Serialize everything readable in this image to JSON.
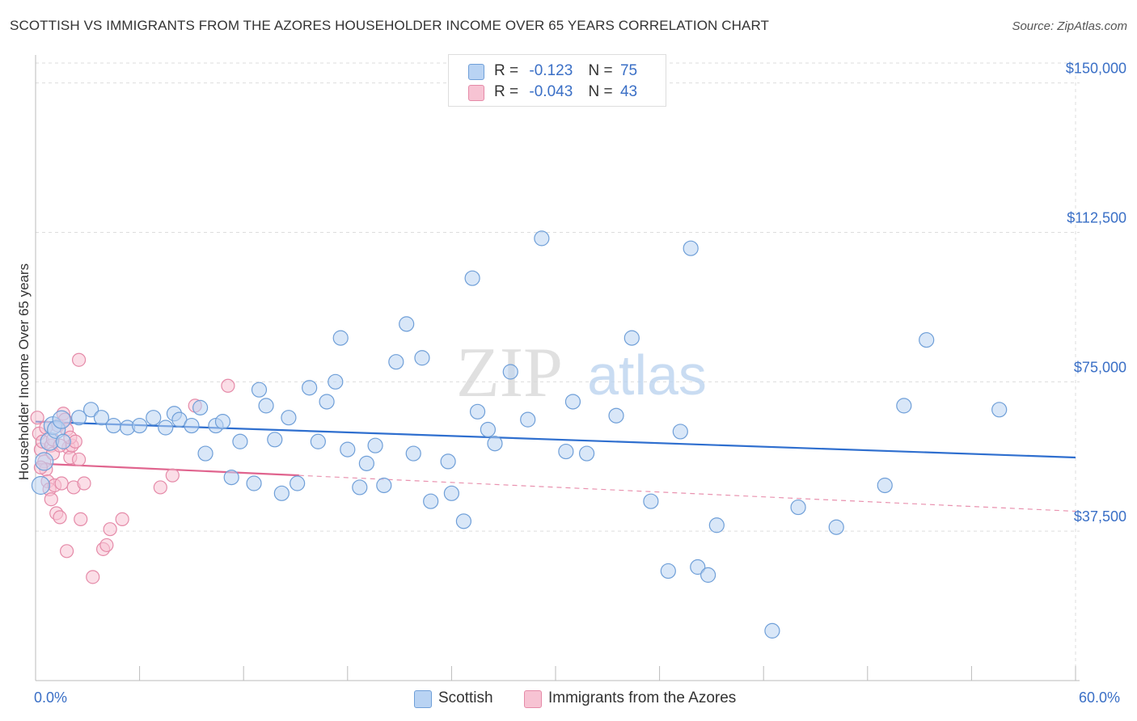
{
  "title": "SCOTTISH VS IMMIGRANTS FROM THE AZORES HOUSEHOLDER INCOME OVER 65 YEARS CORRELATION CHART",
  "source": "Source: ZipAtlas.com",
  "watermark": {
    "zip": "ZIP",
    "atlas": "atlas"
  },
  "stats": {
    "scottish": {
      "r_label": "R =",
      "r_value": "-0.123",
      "n_label": "N =",
      "n_value": "75"
    },
    "azores": {
      "r_label": "R =",
      "r_value": "-0.043",
      "n_label": "N =",
      "n_value": "43"
    }
  },
  "legend": {
    "scottish": "Scottish",
    "azores": "Immigrants from the Azores"
  },
  "colors": {
    "scottish_fill": "#b9d3f3",
    "scottish_stroke": "#6f9fd8",
    "scottish_line": "#2f6fcf",
    "azores_fill": "#f7c3d3",
    "azores_stroke": "#e58aa8",
    "azores_line": "#e0648e",
    "axis_text": "#3a6fc6",
    "grid": "#dddddd"
  },
  "chart_data": {
    "type": "scatter",
    "ylabel": "Householder Income Over 65 years",
    "xlabel": "",
    "xlim": [
      0,
      60
    ],
    "ylim": [
      0,
      155000
    ],
    "x_tick_labels": [
      "0.0%",
      "60.0%"
    ],
    "y_ticks": [
      {
        "value": 37500,
        "label": "$37,500"
      },
      {
        "value": 75000,
        "label": "$75,000"
      },
      {
        "value": 112500,
        "label": "$112,500"
      },
      {
        "value": 150000,
        "label": "$150,000"
      }
    ],
    "grid": true,
    "series": [
      {
        "name": "Scottish",
        "trend": {
          "x": [
            0,
            60
          ],
          "y": [
            65000,
            56000
          ]
        },
        "points": [
          [
            0.3,
            49000
          ],
          [
            0.5,
            55000
          ],
          [
            0.8,
            60000
          ],
          [
            1.0,
            64000
          ],
          [
            1.2,
            63000
          ],
          [
            1.5,
            65500
          ],
          [
            1.6,
            60000
          ],
          [
            2.5,
            66000
          ],
          [
            3.2,
            68000
          ],
          [
            3.8,
            66000
          ],
          [
            4.5,
            64000
          ],
          [
            5.3,
            63500
          ],
          [
            6.0,
            64000
          ],
          [
            6.8,
            66000
          ],
          [
            7.5,
            63500
          ],
          [
            8.0,
            67000
          ],
          [
            8.3,
            65500
          ],
          [
            9.0,
            64000
          ],
          [
            9.5,
            68500
          ],
          [
            9.8,
            57000
          ],
          [
            10.4,
            64000
          ],
          [
            10.8,
            65000
          ],
          [
            11.3,
            51000
          ],
          [
            11.8,
            60000
          ],
          [
            12.6,
            49500
          ],
          [
            12.9,
            73000
          ],
          [
            13.3,
            69000
          ],
          [
            13.8,
            60500
          ],
          [
            14.2,
            47000
          ],
          [
            14.6,
            66000
          ],
          [
            15.1,
            49500
          ],
          [
            15.8,
            73500
          ],
          [
            16.3,
            60000
          ],
          [
            16.8,
            70000
          ],
          [
            17.3,
            75000
          ],
          [
            17.6,
            86000
          ],
          [
            18.0,
            58000
          ],
          [
            18.7,
            48500
          ],
          [
            19.1,
            54500
          ],
          [
            19.6,
            59000
          ],
          [
            20.1,
            49000
          ],
          [
            20.8,
            80000
          ],
          [
            21.4,
            89500
          ],
          [
            21.8,
            57000
          ],
          [
            22.3,
            81000
          ],
          [
            22.8,
            45000
          ],
          [
            23.8,
            55000
          ],
          [
            24.0,
            47000
          ],
          [
            24.7,
            40000
          ],
          [
            25.2,
            101000
          ],
          [
            25.5,
            67500
          ],
          [
            26.1,
            63000
          ],
          [
            26.5,
            59500
          ],
          [
            27.4,
            77500
          ],
          [
            28.4,
            65500
          ],
          [
            29.2,
            111000
          ],
          [
            30.6,
            57500
          ],
          [
            31.0,
            70000
          ],
          [
            31.8,
            57000
          ],
          [
            33.5,
            66500
          ],
          [
            34.4,
            86000
          ],
          [
            35.5,
            45000
          ],
          [
            36.5,
            27500
          ],
          [
            37.2,
            62500
          ],
          [
            37.8,
            108500
          ],
          [
            38.2,
            28500
          ],
          [
            38.8,
            26500
          ],
          [
            39.3,
            39000
          ],
          [
            42.5,
            12500
          ],
          [
            44.0,
            43500
          ],
          [
            46.2,
            38500
          ],
          [
            49.0,
            49000
          ],
          [
            50.1,
            69000
          ],
          [
            51.4,
            85500
          ],
          [
            55.6,
            68000
          ]
        ]
      },
      {
        "name": "Immigrants from the Azores",
        "trend": {
          "x": [
            0,
            15.2
          ],
          "y": [
            54500,
            51500
          ]
        },
        "trend_extension": {
          "x": [
            15.2,
            60
          ],
          "y": [
            51500,
            42500
          ]
        },
        "points": [
          [
            0.1,
            66000
          ],
          [
            0.2,
            62000
          ],
          [
            0.3,
            58000
          ],
          [
            0.4,
            60000
          ],
          [
            0.5,
            55000
          ],
          [
            0.6,
            53000
          ],
          [
            0.7,
            50000
          ],
          [
            0.8,
            48000
          ],
          [
            0.9,
            59000
          ],
          [
            1.0,
            57000
          ],
          [
            1.1,
            49000
          ],
          [
            1.2,
            42000
          ],
          [
            1.3,
            64000
          ],
          [
            1.4,
            41000
          ],
          [
            1.5,
            49500
          ],
          [
            1.6,
            67000
          ],
          [
            1.7,
            65500
          ],
          [
            1.8,
            63000
          ],
          [
            1.9,
            58500
          ],
          [
            2.0,
            56000
          ],
          [
            2.1,
            59000
          ],
          [
            1.8,
            32500
          ],
          [
            2.0,
            61000
          ],
          [
            2.3,
            60000
          ],
          [
            2.5,
            55500
          ],
          [
            2.2,
            48500
          ],
          [
            2.5,
            80500
          ],
          [
            2.6,
            40500
          ],
          [
            2.8,
            49500
          ],
          [
            3.3,
            26000
          ],
          [
            3.9,
            33000
          ],
          [
            4.1,
            34000
          ],
          [
            4.3,
            38000
          ],
          [
            5.0,
            40500
          ],
          [
            7.2,
            48500
          ],
          [
            7.9,
            51500
          ],
          [
            9.2,
            69000
          ],
          [
            11.1,
            74000
          ],
          [
            0.3,
            53500
          ],
          [
            0.9,
            45500
          ],
          [
            1.0,
            60500
          ],
          [
            1.4,
            59000
          ],
          [
            0.6,
            63500
          ]
        ]
      }
    ]
  }
}
